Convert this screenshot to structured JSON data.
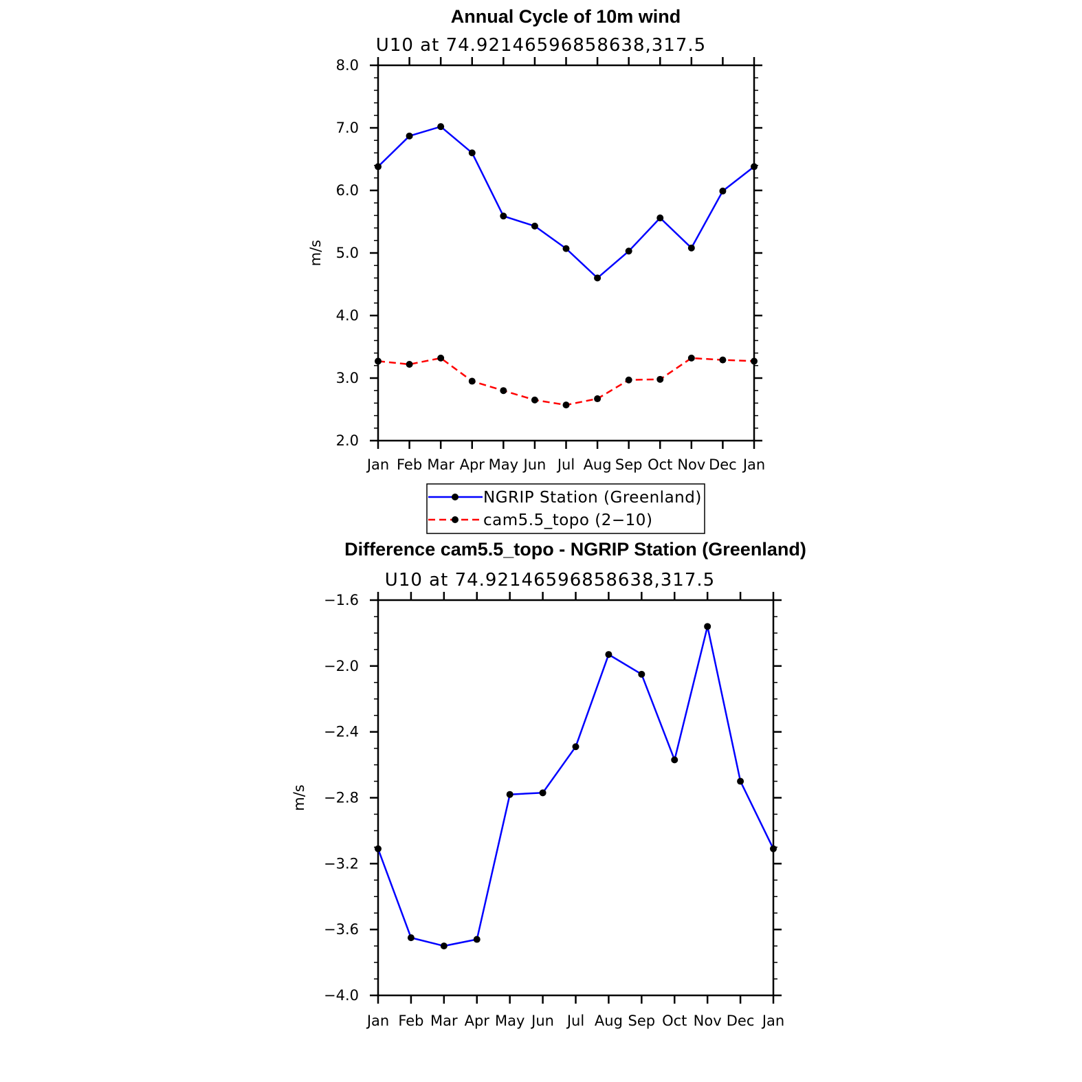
{
  "chart_data": [
    {
      "type": "line",
      "title": "Annual Cycle of 10m wind",
      "subtitle": "U10 at 74.92146596858638,317.5",
      "xlabel": "",
      "ylabel": "m/s",
      "categories": [
        "Jan",
        "Feb",
        "Mar",
        "Apr",
        "May",
        "Jun",
        "Jul",
        "Aug",
        "Sep",
        "Oct",
        "Nov",
        "Dec",
        "Jan"
      ],
      "ylim": [
        2.0,
        8.0
      ],
      "yticks": [
        "2.0",
        "3.0",
        "4.0",
        "5.0",
        "6.0",
        "7.0",
        "8.0"
      ],
      "ytick_values": [
        2.0,
        3.0,
        4.0,
        5.0,
        6.0,
        7.0,
        8.0
      ],
      "grid": false,
      "series": [
        {
          "name": "NGRIP Station (Greenland)",
          "color": "#0000ff",
          "dash": "solid",
          "values": [
            6.38,
            6.87,
            7.02,
            6.6,
            5.59,
            5.43,
            5.07,
            4.6,
            5.03,
            5.56,
            5.08,
            5.99,
            6.38
          ]
        },
        {
          "name": "cam5.5_topo (2−10)",
          "color": "#ff0000",
          "dash": "dashed",
          "values": [
            3.27,
            3.22,
            3.32,
            2.95,
            2.8,
            2.65,
            2.57,
            2.67,
            2.97,
            2.98,
            3.32,
            3.29,
            3.27
          ]
        }
      ],
      "legend": {
        "placement": "bottom-center",
        "entries": [
          "NGRIP Station (Greenland)",
          "cam5.5_topo (2−10)"
        ]
      }
    },
    {
      "type": "line",
      "title": "Difference cam5.5_topo - NGRIP Station (Greenland)",
      "subtitle": "U10 at 74.92146596858638,317.5",
      "xlabel": "",
      "ylabel": "m/s",
      "categories": [
        "Jan",
        "Feb",
        "Mar",
        "Apr",
        "May",
        "Jun",
        "Jul",
        "Aug",
        "Sep",
        "Oct",
        "Nov",
        "Dec",
        "Jan"
      ],
      "ylim": [
        -4.0,
        -1.6
      ],
      "yticks": [
        "−4.0",
        "−3.6",
        "−3.2",
        "−2.8",
        "−2.4",
        "−2.0",
        "−1.6"
      ],
      "ytick_values": [
        -4.0,
        -3.6,
        -3.2,
        -2.8,
        -2.4,
        -2.0,
        -1.6
      ],
      "grid": false,
      "series": [
        {
          "name": "Difference",
          "color": "#0000ff",
          "dash": "solid",
          "values": [
            -3.11,
            -3.65,
            -3.7,
            -3.66,
            -2.78,
            -2.77,
            -2.49,
            -1.93,
            -2.05,
            -2.57,
            -1.76,
            -2.7,
            -3.11
          ]
        }
      ]
    }
  ]
}
